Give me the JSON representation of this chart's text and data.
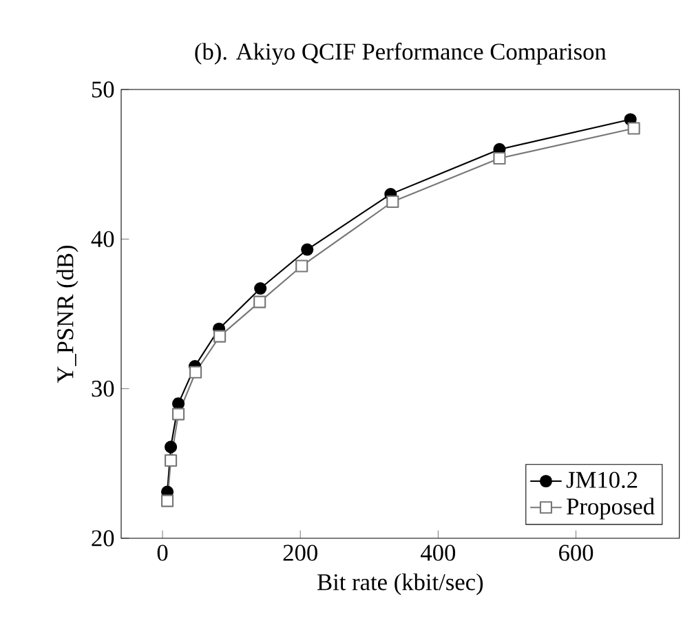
{
  "chart_data": {
    "type": "line",
    "title": "(b). Akiyo QCIF Performance Comparison",
    "xlabel": "Bit rate (kbit/sec)",
    "ylabel": "Y_PSNR (dB)",
    "xlim": [
      -60,
      750
    ],
    "ylim": [
      20,
      50
    ],
    "xticks": [
      0,
      200,
      400,
      600
    ],
    "yticks": [
      20,
      30,
      40,
      50
    ],
    "grid": false,
    "legend": "bottom right",
    "line_style": "solid",
    "series": [
      {
        "name": "JM10.2",
        "color": "#000000",
        "marker": "circle",
        "x": [
          7,
          12,
          23,
          47,
          82,
          142,
          210,
          331,
          489,
          679
        ],
        "values": [
          23.1,
          26.1,
          29.0,
          31.5,
          34.0,
          36.7,
          39.3,
          43.0,
          46.0,
          48.0
        ]
      },
      {
        "name": "Proposed",
        "color": "#777777",
        "marker": "square",
        "x": [
          7,
          12,
          23,
          48,
          83,
          141,
          202,
          334,
          489,
          684
        ],
        "values": [
          22.5,
          25.2,
          28.3,
          31.1,
          33.5,
          35.8,
          38.2,
          42.5,
          45.4,
          47.4
        ]
      }
    ]
  }
}
